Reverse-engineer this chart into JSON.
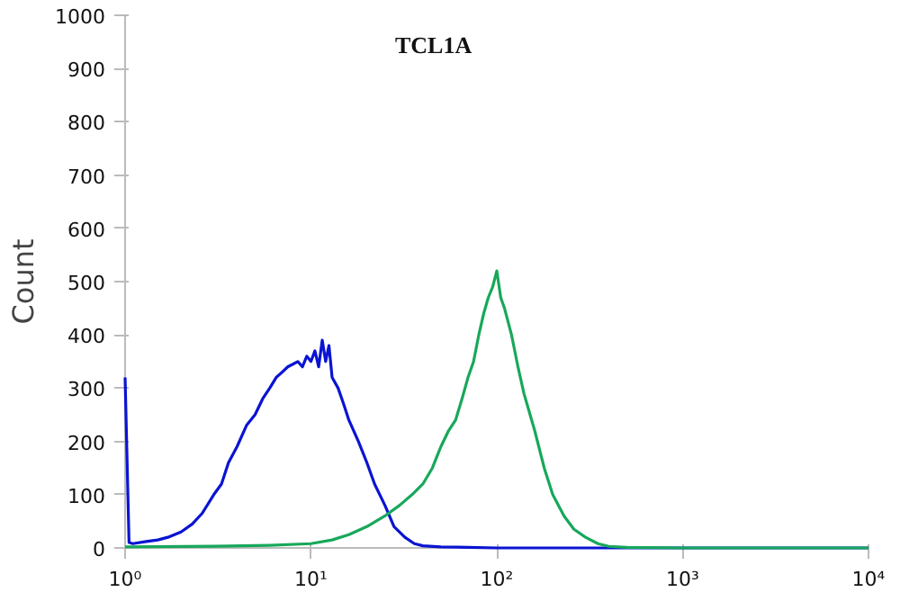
{
  "chart_data": {
    "type": "line",
    "title": "TCL1A",
    "ylabel": "Count",
    "xlim": [
      1,
      10000
    ],
    "ylim": [
      0,
      1000
    ],
    "xticks": [
      {
        "value": 1,
        "label": "10⁰"
      },
      {
        "value": 10,
        "label": "10¹"
      },
      {
        "value": 100,
        "label": "10²"
      },
      {
        "value": 1000,
        "label": "10³"
      },
      {
        "value": 10000,
        "label": "10⁴"
      }
    ],
    "yticks": [
      0,
      100,
      200,
      300,
      400,
      500,
      600,
      700,
      800,
      900,
      1000
    ],
    "log": "x",
    "grid": false,
    "marker": "none",
    "line_style": "solid",
    "series": [
      {
        "color": "#0a14d2",
        "x": [
          1,
          1,
          1.05,
          1.1,
          1.3,
          1.5,
          1.7,
          2,
          2.3,
          2.6,
          3,
          3.3,
          3.6,
          4,
          4.5,
          5,
          5.5,
          6,
          6.5,
          7,
          7.5,
          8,
          8.5,
          9,
          9.5,
          10,
          10.5,
          11,
          11.5,
          12,
          12.5,
          13,
          14,
          15,
          16,
          18,
          20,
          22,
          25,
          28,
          32,
          36,
          40,
          50,
          70,
          100,
          200,
          500,
          1000,
          10000
        ],
        "values": [
          320,
          320,
          10,
          8,
          12,
          15,
          20,
          30,
          45,
          65,
          100,
          120,
          160,
          190,
          230,
          250,
          280,
          300,
          320,
          330,
          340,
          345,
          350,
          340,
          360,
          350,
          370,
          340,
          390,
          350,
          380,
          320,
          300,
          270,
          240,
          200,
          160,
          120,
          80,
          40,
          20,
          8,
          4,
          2,
          1,
          0,
          0,
          0,
          0,
          0
        ]
      },
      {
        "color": "#17a85a",
        "x": [
          1,
          3,
          6,
          10,
          13,
          16,
          20,
          25,
          30,
          35,
          40,
          45,
          50,
          55,
          60,
          65,
          70,
          75,
          80,
          85,
          90,
          95,
          100,
          105,
          110,
          120,
          130,
          140,
          160,
          180,
          200,
          230,
          260,
          300,
          350,
          400,
          500,
          1000,
          10000
        ],
        "values": [
          2,
          3,
          5,
          8,
          15,
          25,
          40,
          60,
          80,
          100,
          120,
          150,
          190,
          220,
          240,
          280,
          320,
          350,
          400,
          440,
          470,
          490,
          520,
          470,
          450,
          400,
          340,
          290,
          220,
          150,
          100,
          60,
          35,
          20,
          8,
          3,
          1,
          0,
          0
        ]
      }
    ]
  }
}
